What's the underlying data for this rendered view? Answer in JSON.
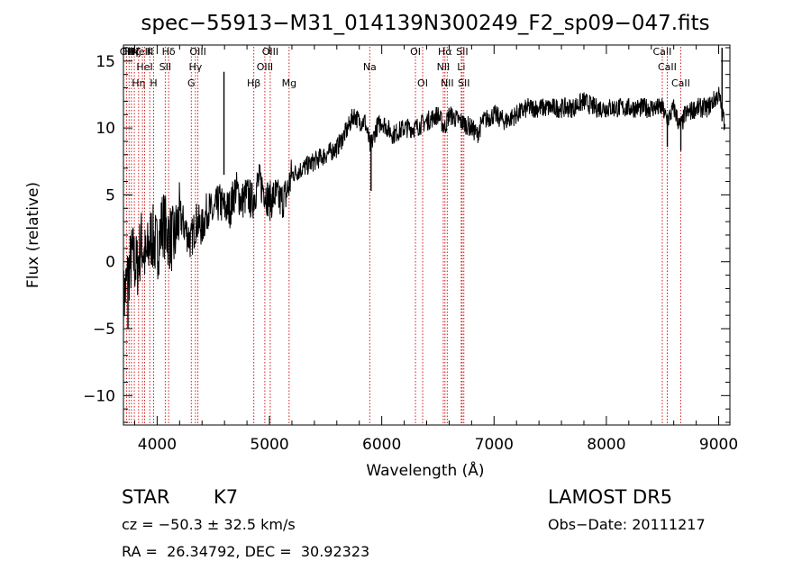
{
  "chart_data": {
    "type": "line",
    "title": "spec−55913−M31_014139N300249_F2_sp09−047.fits",
    "xlabel": "Wavelength (Å)",
    "ylabel": "Flux (relative)",
    "xlim": [
      3700,
      9100
    ],
    "ylim": [
      -12.2,
      16.2
    ],
    "x_ticks": [
      4000,
      5000,
      6000,
      7000,
      8000,
      9000
    ],
    "y_ticks": [
      -10,
      -5,
      0,
      5,
      10,
      15
    ],
    "grid": false,
    "line_color": "#000000",
    "marker_line_color": "#cc0000",
    "series": [
      {
        "x": [
          3700,
          3740,
          3780,
          3820,
          3860,
          3900,
          3950,
          4000,
          4050,
          4100,
          4150,
          4200,
          4250,
          4300,
          4350,
          4400,
          4450,
          4500,
          4550,
          4600,
          4650,
          4700,
          4750,
          4800,
          4850,
          4900,
          4950,
          5000,
          5050,
          5100,
          5150,
          5200,
          5300,
          5400,
          5500,
          5600,
          5700,
          5750,
          5800,
          5850,
          5900,
          5950,
          6000,
          6100,
          6200,
          6300,
          6400,
          6500,
          6560,
          6600,
          6700,
          6800,
          6850,
          6900,
          7000,
          7100,
          7200,
          7300,
          7400,
          7500,
          7600,
          7700,
          7800,
          7900,
          8000,
          8100,
          8200,
          8300,
          8400,
          8500,
          8540,
          8600,
          8660,
          8700,
          8800,
          8900,
          8950,
          9000,
          9050
        ],
        "y": [
          -3.0,
          -1.0,
          0.5,
          -0.5,
          1.5,
          0.0,
          2.0,
          1.0,
          3.0,
          2.0,
          1.5,
          3.5,
          2.5,
          1.5,
          3.0,
          2.5,
          4.0,
          3.5,
          4.5,
          4.0,
          4.0,
          5.5,
          4.5,
          5.0,
          4.5,
          6.0,
          5.5,
          4.5,
          5.0,
          4.5,
          5.0,
          6.5,
          7.0,
          7.5,
          8.0,
          8.5,
          10.0,
          11.0,
          10.5,
          10.5,
          8.5,
          10.0,
          10.5,
          9.5,
          10.0,
          10.0,
          10.5,
          11.0,
          10.0,
          11.0,
          10.5,
          10.0,
          9.5,
          10.5,
          11.0,
          10.5,
          11.0,
          11.5,
          11.5,
          11.5,
          11.5,
          11.5,
          12.0,
          11.5,
          11.5,
          11.5,
          11.5,
          11.5,
          11.5,
          11.5,
          10.5,
          11.5,
          10.0,
          11.0,
          11.5,
          11.5,
          12.0,
          12.5,
          10.5
        ]
      }
    ],
    "spikes": [
      {
        "x": 4595,
        "y_bottom": 6.5,
        "y_top": 14.2
      },
      {
        "x": 5905,
        "y_bottom": 5.3,
        "y_top": 9.5
      },
      {
        "x": 8543,
        "y_bottom": 8.6,
        "y_top": 11.0
      },
      {
        "x": 8663,
        "y_bottom": 8.3,
        "y_top": 10.8
      },
      {
        "x": 9030,
        "y_bottom": 10.5,
        "y_top": 16.0
      },
      {
        "x": 3740,
        "y_bottom": -5.0,
        "y_top": 0.0
      }
    ],
    "line_markers": [
      {
        "x": 3727,
        "label": "OII",
        "row": 0
      },
      {
        "x": 3750,
        "label": "Hθ",
        "row": 0
      },
      {
        "x": 3771,
        "label": "Hη",
        "row": 0
      },
      {
        "x": 3797,
        "label": "Hζ",
        "row": 0
      },
      {
        "x": 3835,
        "label": "Hη",
        "row": 2
      },
      {
        "x": 3869,
        "label": "NeIII",
        "row": 0
      },
      {
        "x": 3889,
        "label": "HeI",
        "row": 1
      },
      {
        "x": 3934,
        "label": "K",
        "row": 0
      },
      {
        "x": 3969,
        "label": "H",
        "row": 2
      },
      {
        "x": 4072,
        "label": "SII",
        "row": 1
      },
      {
        "x": 4102,
        "label": "Hδ",
        "row": 0
      },
      {
        "x": 4304,
        "label": "G",
        "row": 2
      },
      {
        "x": 4341,
        "label": "Hγ",
        "row": 1
      },
      {
        "x": 4363,
        "label": "OIII",
        "row": 0
      },
      {
        "x": 4861,
        "label": "Hβ",
        "row": 2
      },
      {
        "x": 4959,
        "label": "OIII",
        "row": 1
      },
      {
        "x": 5007,
        "label": "OIII",
        "row": 0
      },
      {
        "x": 5175,
        "label": "Mg",
        "row": 2
      },
      {
        "x": 5893,
        "label": "Na",
        "row": 1
      },
      {
        "x": 6300,
        "label": "OI",
        "row": 0
      },
      {
        "x": 6364,
        "label": "OI",
        "row": 2
      },
      {
        "x": 6548,
        "label": "NII",
        "row": 1
      },
      {
        "x": 6563,
        "label": "Hα",
        "row": 0
      },
      {
        "x": 6583,
        "label": "NII",
        "row": 2
      },
      {
        "x": 6708,
        "label": "Li",
        "row": 1
      },
      {
        "x": 6716,
        "label": "SII",
        "row": 0
      },
      {
        "x": 6731,
        "label": "SII",
        "row": 2
      },
      {
        "x": 8498,
        "label": "CaII",
        "row": 0
      },
      {
        "x": 8542,
        "label": "CaII",
        "row": 1
      },
      {
        "x": 8662,
        "label": "CaII",
        "row": 2
      }
    ]
  },
  "info": {
    "object_class": "STAR",
    "subclass": "K7",
    "survey": "LAMOST DR5",
    "redshift_line": "cz = −50.3 ± 32.5 km/s",
    "obs_date_line": "Obs−Date: 20111217",
    "coords_line": "RA =  26.34792, DEC =  30.92323"
  }
}
